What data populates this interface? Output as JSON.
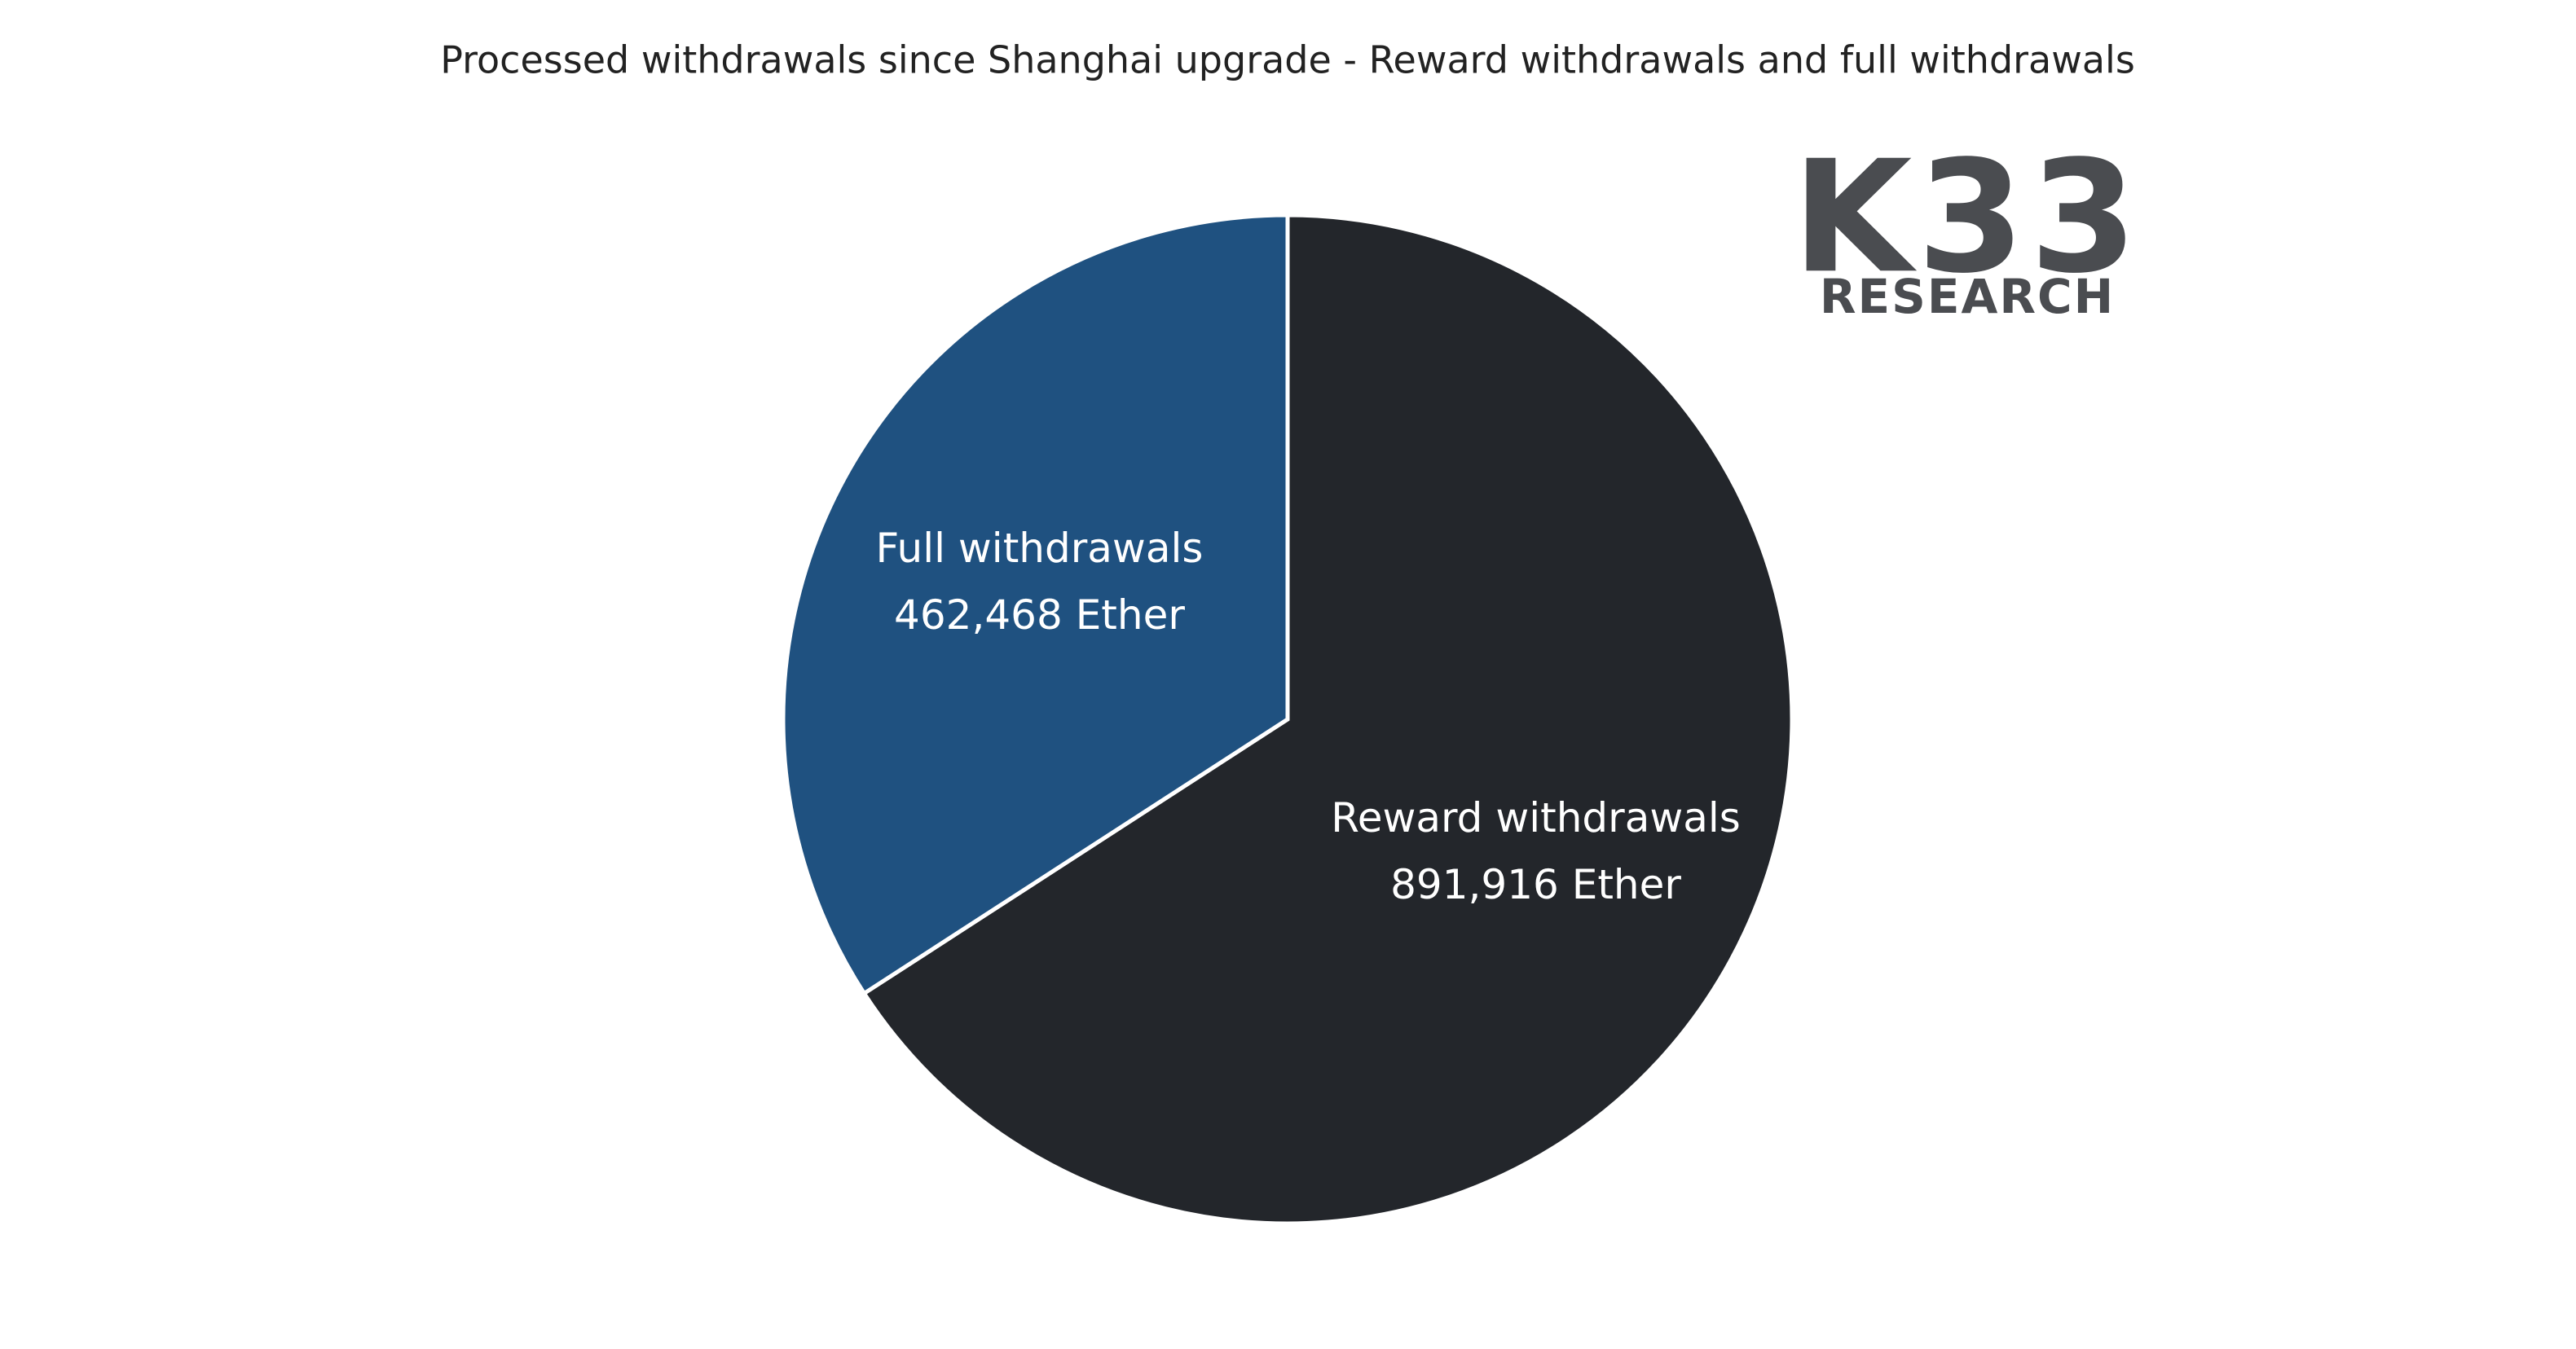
{
  "chart_data": {
    "type": "pie",
    "title": "Processed withdrawals since Shanghai upgrade - Reward withdrawals and full withdrawals",
    "categories": [
      "Reward withdrawals",
      "Full withdrawals"
    ],
    "values": [
      891916,
      462468
    ],
    "value_labels": [
      "891,916 Ether",
      "462,468 Ether"
    ],
    "colors": [
      "#23262b",
      "#1f5180"
    ]
  },
  "logo": {
    "title": "K33",
    "subtitle": "RESEARCH"
  }
}
